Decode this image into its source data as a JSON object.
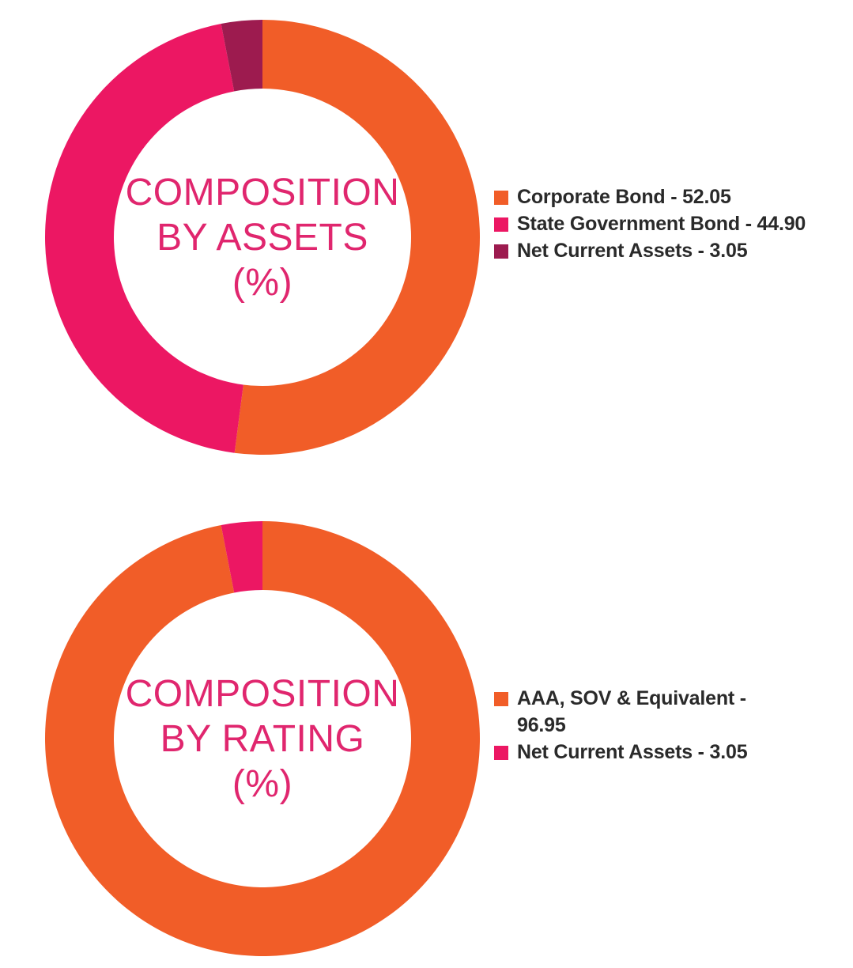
{
  "chart_data": [
    {
      "type": "pie",
      "title_lines": [
        "COMPOSITION",
        "BY ASSETS",
        "(%)"
      ],
      "slices": [
        {
          "label": "Corporate Bond - 52.05",
          "value": 52.05,
          "color": "#f15d28"
        },
        {
          "label": "State Government Bond - 44.90",
          "value": 44.9,
          "color": "#ec1763"
        },
        {
          "label": "Net Current Assets - 3.05",
          "value": 3.05,
          "color": "#9d1b4f"
        }
      ],
      "legend_position": "right"
    },
    {
      "type": "pie",
      "title_lines": [
        "COMPOSITION",
        "BY RATING",
        "(%)"
      ],
      "slices": [
        {
          "label": "AAA, SOV & Equivalent - 96.95",
          "value": 96.95,
          "color": "#f15d28"
        },
        {
          "label": "Net Current Assets - 3.05",
          "value": 3.05,
          "color": "#ec1763"
        }
      ],
      "legend_position": "right"
    }
  ],
  "colors": {
    "title": "#e0266e",
    "legend_text": "#2a2a2a",
    "background": "#ffffff"
  }
}
